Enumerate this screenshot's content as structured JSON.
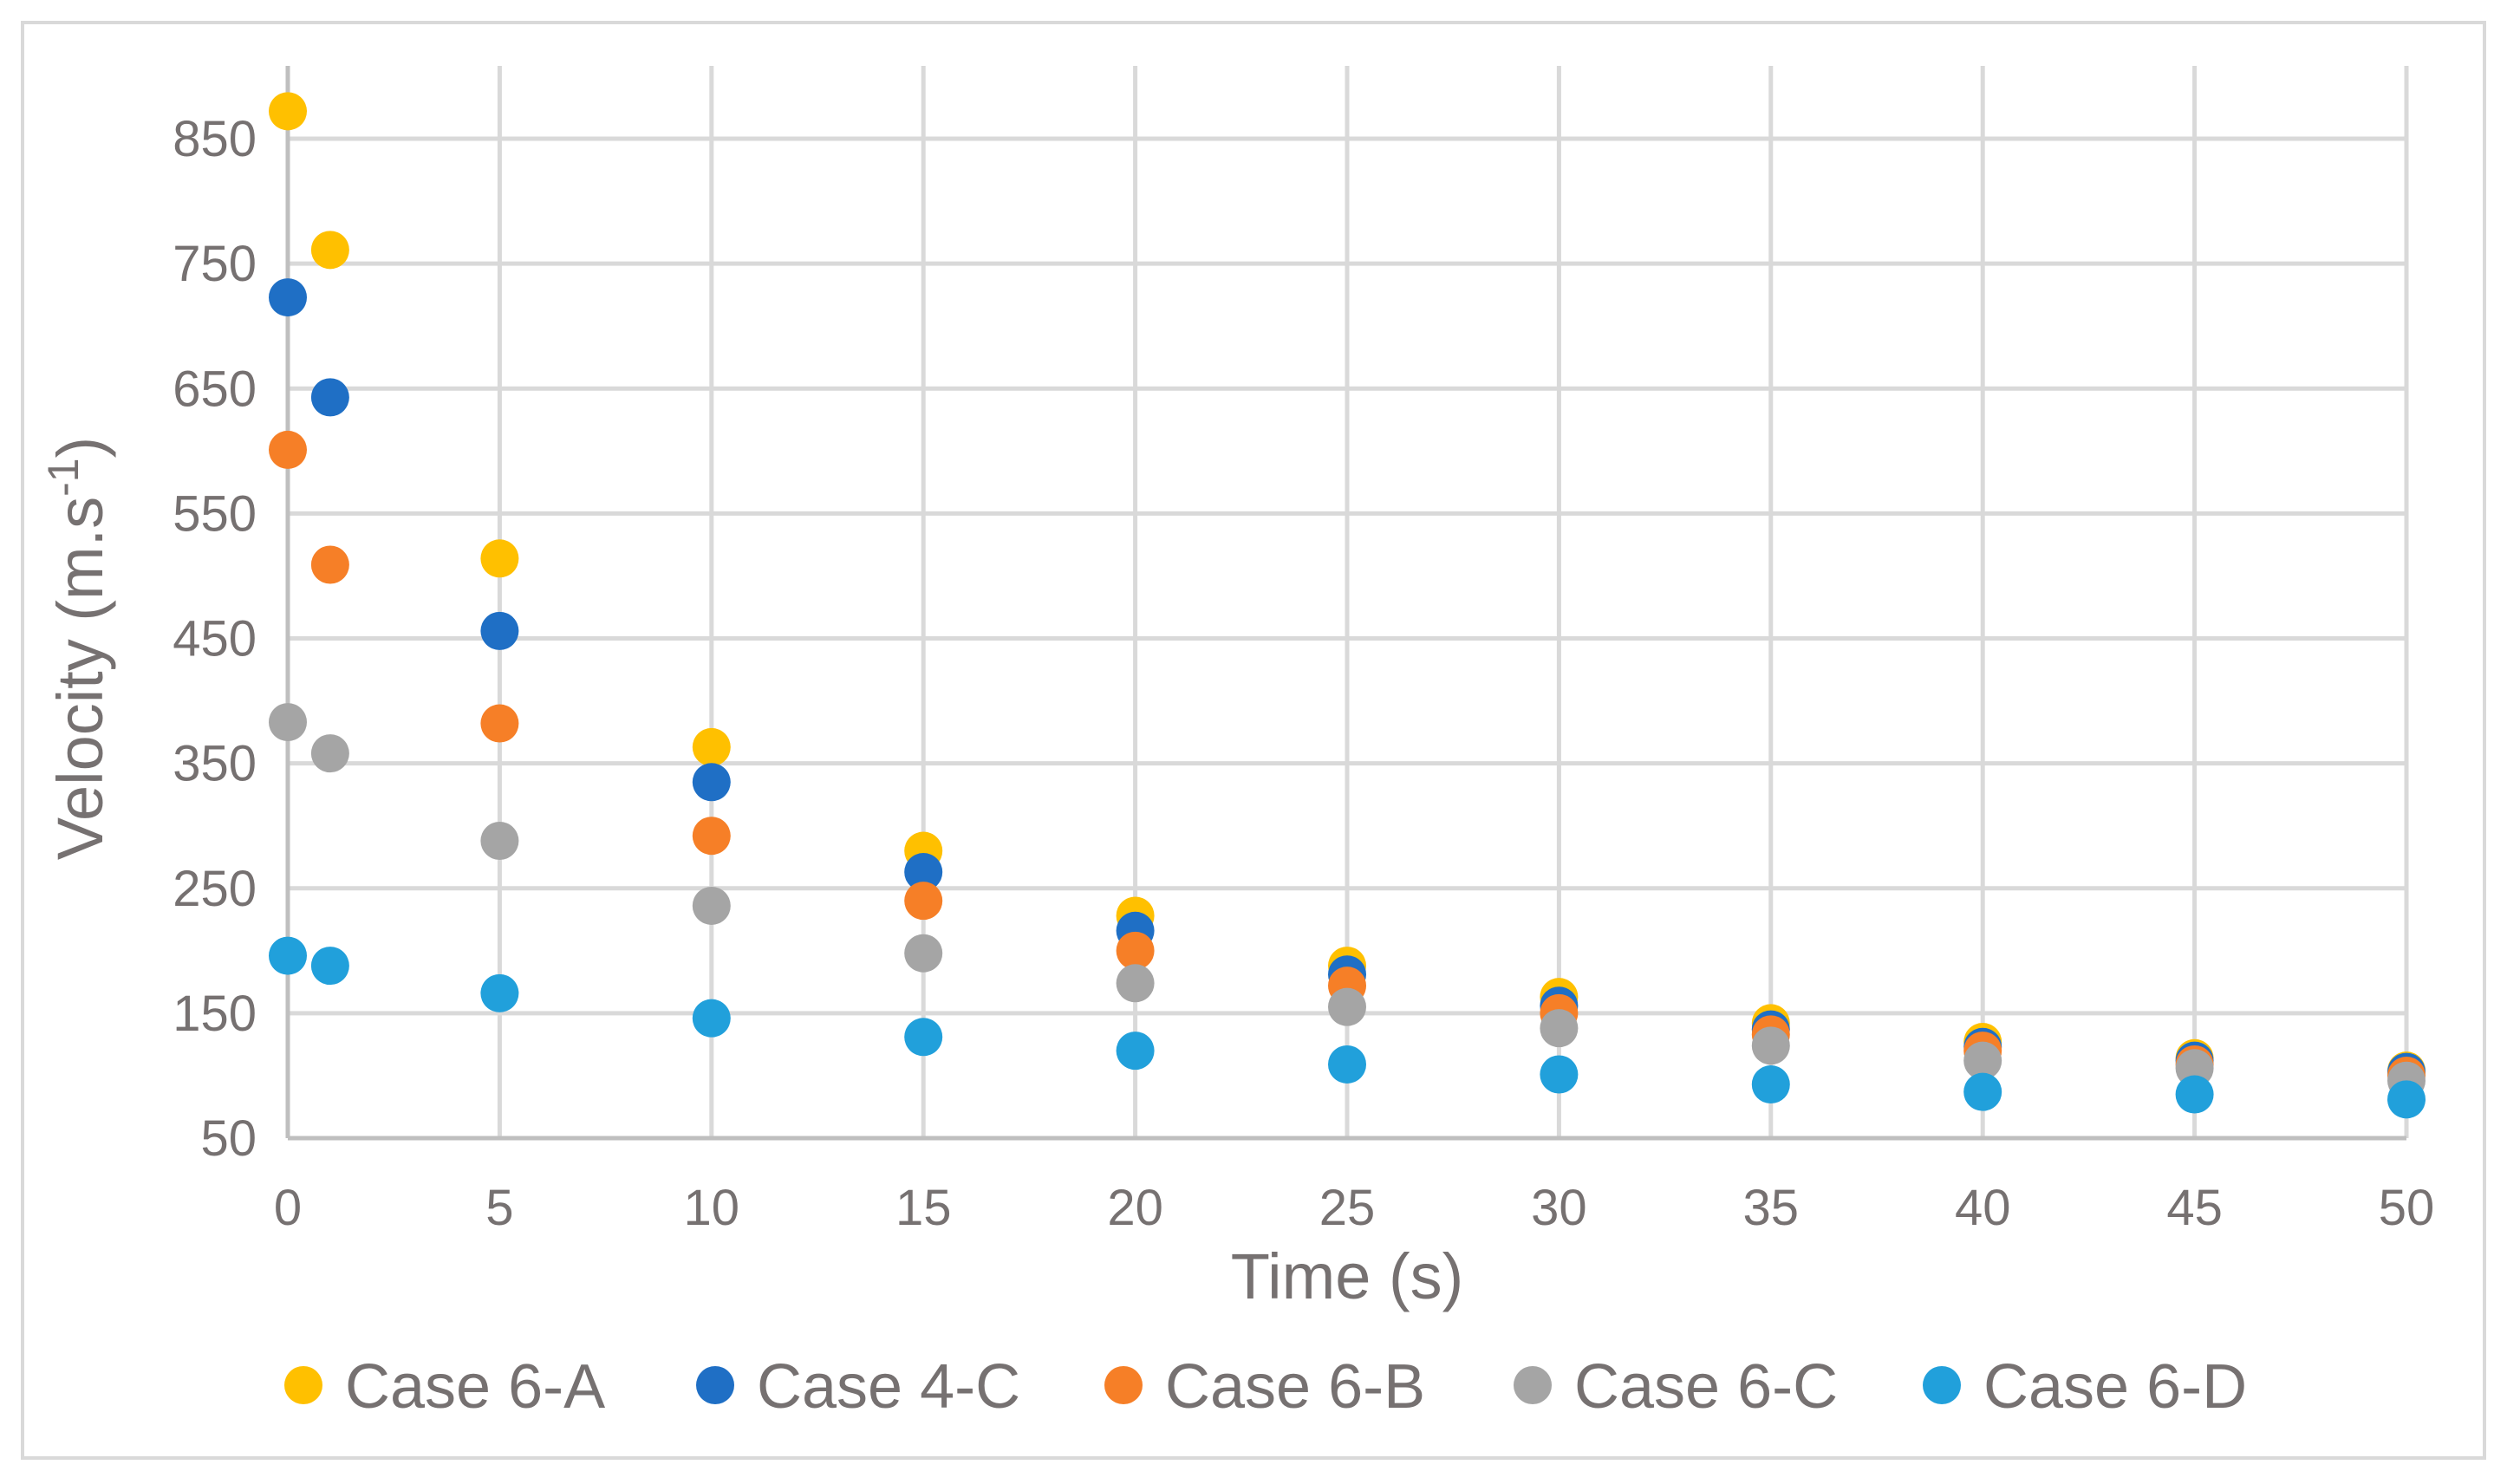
{
  "chart_data": {
    "type": "scatter",
    "title": "",
    "xlabel": "Time (s)",
    "ylabel": "Velocity (m.s",
    "ylabel_sup": "-1",
    "ylabel_close": ")",
    "xlim": [
      0,
      50
    ],
    "ylim": [
      50,
      900
    ],
    "xticks": [
      0,
      5,
      10,
      15,
      20,
      25,
      30,
      35,
      40,
      45,
      50
    ],
    "yticks": [
      50,
      150,
      250,
      350,
      450,
      550,
      650,
      750,
      850
    ],
    "grid": true,
    "legend_position": "bottom",
    "x": [
      0,
      1,
      5,
      10,
      15,
      20,
      25,
      30,
      35,
      40,
      45,
      50
    ],
    "series": [
      {
        "name": "Case 6-A",
        "color": "#FFC000",
        "values": [
          872,
          761,
          514,
          363,
          280,
          228,
          188,
          163,
          142,
          127,
          114,
          104
        ]
      },
      {
        "name": "Case 4-C",
        "color": "#1F6FC5",
        "values": [
          723,
          643,
          456,
          335,
          263,
          216,
          181,
          156,
          137,
          123,
          112,
          103
        ]
      },
      {
        "name": "Case 6-B",
        "color": "#F67F27",
        "values": [
          601,
          509,
          382,
          292,
          240,
          200,
          172,
          150,
          133,
          120,
          109,
          100
        ]
      },
      {
        "name": "Case 6-C",
        "color": "#A5A5A5",
        "values": [
          383,
          358,
          288,
          236,
          198,
          174,
          155,
          138,
          124,
          112,
          106,
          96
        ]
      },
      {
        "name": "Case 6-D",
        "color": "#21A0DB",
        "values": [
          196,
          188,
          166,
          146,
          131,
          120,
          109,
          101,
          93,
          87,
          85,
          81
        ]
      }
    ]
  }
}
